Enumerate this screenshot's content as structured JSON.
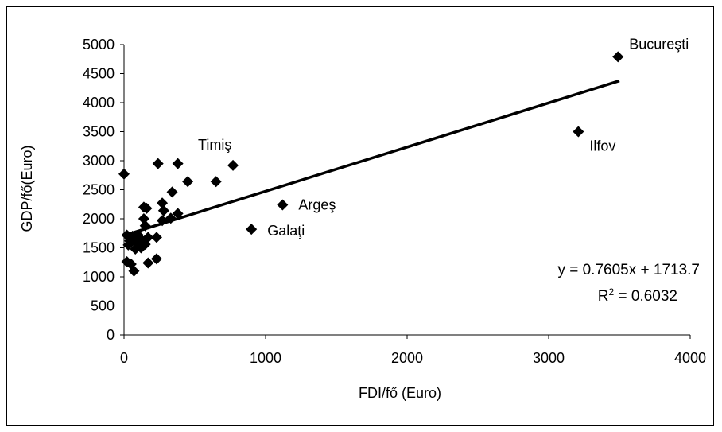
{
  "chart_data": {
    "type": "scatter",
    "xlabel": "FDI/fő (Euro)",
    "ylabel": "GDP/fő(Euro)",
    "xlim": [
      0,
      4000
    ],
    "ylim": [
      0,
      5000
    ],
    "x_ticks": [
      "0",
      "1000",
      "2000",
      "3000",
      "4000"
    ],
    "y_ticks": [
      "0",
      "500",
      "1000",
      "1500",
      "2000",
      "2500",
      "3000",
      "3500",
      "4000",
      "4500",
      "5000"
    ],
    "grid": false,
    "legend": "none",
    "marker": "diamond",
    "marker_color": "#000000",
    "points": [
      {
        "x": 3490,
        "y": 4790,
        "label": "Bucureşti"
      },
      {
        "x": 3210,
        "y": 3500,
        "label": "Ilfov"
      },
      {
        "x": 770,
        "y": 2920,
        "label": "Timiş"
      },
      {
        "x": 1120,
        "y": 2240,
        "label": "Argeş"
      },
      {
        "x": 900,
        "y": 1820,
        "label": "Galaţi"
      },
      {
        "x": 0,
        "y": 2770
      },
      {
        "x": 240,
        "y": 2950
      },
      {
        "x": 380,
        "y": 2950
      },
      {
        "x": 650,
        "y": 2640
      },
      {
        "x": 450,
        "y": 2640
      },
      {
        "x": 340,
        "y": 2460
      },
      {
        "x": 270,
        "y": 2270
      },
      {
        "x": 140,
        "y": 2200
      },
      {
        "x": 160,
        "y": 2180
      },
      {
        "x": 280,
        "y": 2140
      },
      {
        "x": 380,
        "y": 2090
      },
      {
        "x": 140,
        "y": 2000
      },
      {
        "x": 330,
        "y": 2010
      },
      {
        "x": 270,
        "y": 1970
      },
      {
        "x": 150,
        "y": 1880
      },
      {
        "x": 20,
        "y": 1720
      },
      {
        "x": 100,
        "y": 1720
      },
      {
        "x": 60,
        "y": 1700
      },
      {
        "x": 170,
        "y": 1680
      },
      {
        "x": 230,
        "y": 1680
      },
      {
        "x": 40,
        "y": 1620
      },
      {
        "x": 80,
        "y": 1600
      },
      {
        "x": 130,
        "y": 1620
      },
      {
        "x": 30,
        "y": 1550
      },
      {
        "x": 110,
        "y": 1530
      },
      {
        "x": 150,
        "y": 1560
      },
      {
        "x": 80,
        "y": 1480
      },
      {
        "x": 120,
        "y": 1500
      },
      {
        "x": 20,
        "y": 1260
      },
      {
        "x": 50,
        "y": 1220
      },
      {
        "x": 170,
        "y": 1240
      },
      {
        "x": 230,
        "y": 1310
      },
      {
        "x": 70,
        "y": 1100
      }
    ],
    "trendline": {
      "slope": 0.7605,
      "intercept": 1713.7,
      "x_from": 0,
      "x_to": 3500
    },
    "equation": "y = 0.7605x + 1713.7",
    "r_squared_prefix": "R",
    "r_squared_sup": "2",
    "r_squared_value": " = 0.6032"
  }
}
